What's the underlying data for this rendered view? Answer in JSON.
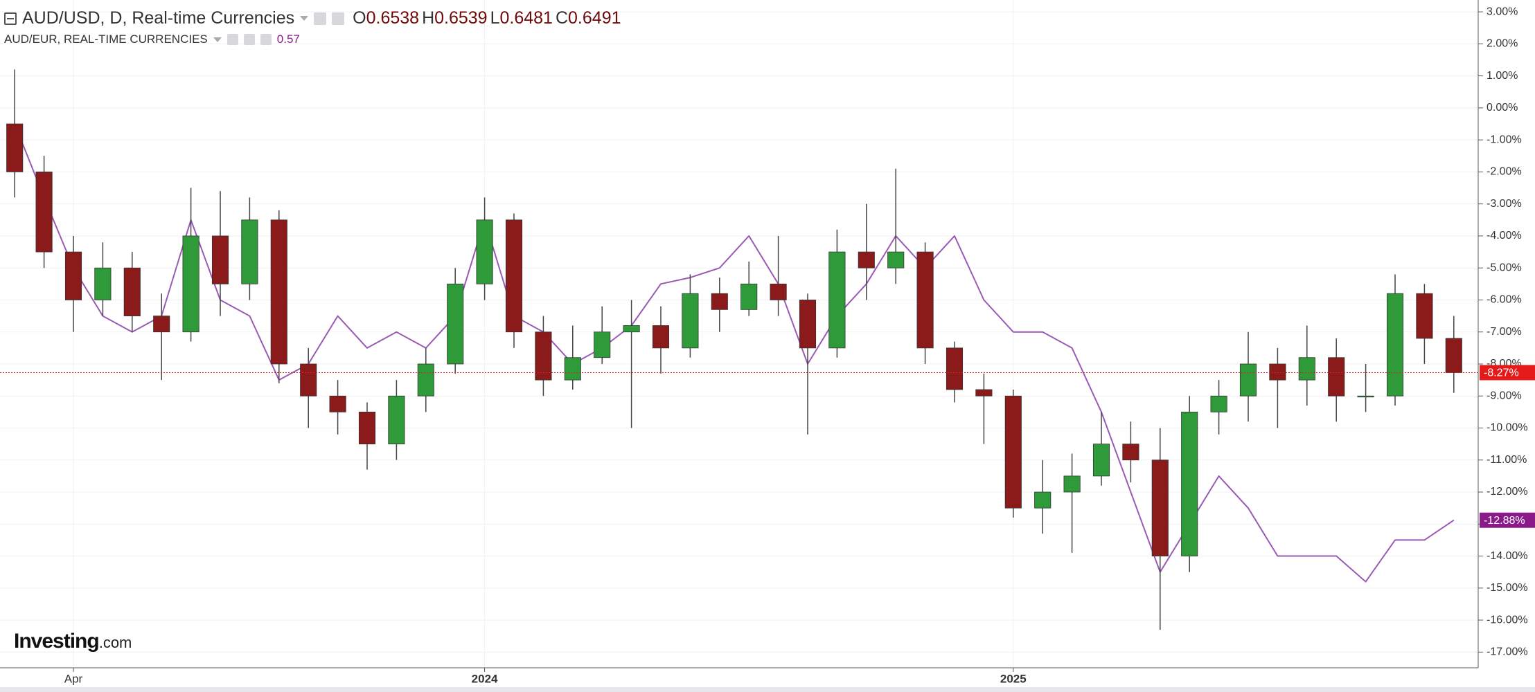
{
  "chart_data": {
    "type": "candlestick",
    "title": "AUD/USD, D, Real-time Currencies",
    "ohlc": {
      "labels": [
        "O",
        "H",
        "L",
        "C"
      ],
      "values": [
        0.6538,
        0.6539,
        0.6481,
        0.6491
      ]
    },
    "categories": [
      null,
      null,
      "Apr",
      null,
      null,
      null,
      null,
      null,
      null,
      null,
      null,
      null,
      null,
      null,
      null,
      null,
      "2024",
      null,
      null,
      null,
      null,
      null,
      null,
      null,
      null,
      null,
      null,
      null,
      null,
      null,
      null,
      null,
      null,
      null,
      "2025",
      null,
      null,
      null,
      null,
      null,
      null,
      null,
      null,
      null,
      null,
      null,
      null,
      null,
      null,
      null
    ],
    "open": [
      -0.5,
      -2,
      -4.5,
      -6,
      -5,
      -6.5,
      -7,
      -4,
      -5.5,
      -3.5,
      -8,
      -9,
      -9.5,
      -10.5,
      -9,
      -8,
      -5.5,
      -3.5,
      -7,
      -8.5,
      -7.8,
      -7,
      -6.8,
      -7.5,
      -5.8,
      -6.3,
      -5.5,
      -6,
      -7.5,
      -4.5,
      -5,
      -4.5,
      -7.5,
      -8.8,
      -9,
      -12.5,
      -12,
      -11.5,
      -10.5,
      -11,
      -14,
      -9.5,
      -9,
      -8,
      -8.5,
      -7.8,
      -9,
      -9,
      -5.8,
      -7.2
    ],
    "high": [
      1.2,
      -1.5,
      -4,
      -4.2,
      -4.5,
      -5.8,
      -2.5,
      -2.6,
      -2.8,
      -3.2,
      -7.5,
      -8.5,
      -9.2,
      -8.5,
      -7.5,
      -5,
      -2.8,
      -3.3,
      -6.5,
      -6.8,
      -6.2,
      -6,
      -6.2,
      -5.2,
      -5.3,
      -4.8,
      -4,
      -5.8,
      -3.8,
      -3,
      -1.9,
      -4.2,
      -7.3,
      -8.3,
      -8.8,
      -11,
      -10.8,
      -9.5,
      -9.8,
      -10,
      -9,
      -8.5,
      -7,
      -7.5,
      -6.8,
      -7.2,
      -8,
      -5.2,
      -5.5,
      -6.5
    ],
    "low": [
      -2.8,
      -5,
      -7,
      -6.5,
      -7,
      -8.5,
      -7.3,
      -6.5,
      -6,
      -8.6,
      -10,
      -10.2,
      -11.3,
      -11,
      -9.5,
      -8.3,
      -6,
      -7.5,
      -9,
      -8.8,
      -8,
      -10,
      -8.3,
      -7.8,
      -7,
      -6.5,
      -6.5,
      -10.2,
      -7.8,
      -6,
      -5.5,
      -8,
      -9.2,
      -10.5,
      -12.8,
      -13.3,
      -13.9,
      -11.8,
      -11.7,
      -16.3,
      -14.5,
      -10.2,
      -9.8,
      -10,
      -9.3,
      -9.8,
      -9.5,
      -9.3,
      -8,
      -8.9
    ],
    "close": [
      -2,
      -4.5,
      -6,
      -5,
      -6.5,
      -7,
      -4,
      -5.5,
      -3.5,
      -8,
      -9,
      -9.5,
      -10.5,
      -9,
      -8,
      -5.5,
      -3.5,
      -7,
      -8.5,
      -7.8,
      -7,
      -6.8,
      -7.5,
      -5.8,
      -6.3,
      -5.5,
      -6,
      -7.5,
      -4.5,
      -5,
      -4.5,
      -7.5,
      -8.8,
      -9,
      -12.5,
      -12,
      -11.5,
      -10.5,
      -11,
      -14,
      -9.5,
      -9,
      -8,
      -8.5,
      -7.8,
      -9,
      -9,
      -5.8,
      -7.2,
      -8.27
    ],
    "up_color": "#2e9a3a",
    "down_color": "#8b1a1a",
    "last_label": "-8.27%",
    "last_color": "#e31b1b",
    "overlay": {
      "name": "AUD/EUR, REAL-TIME CURRENCIES",
      "value": 0.57,
      "color": "#9b59b6",
      "tag_color": "#8a1a8a",
      "values": [
        -0.5,
        -2.8,
        -5,
        -6.5,
        -7,
        -6.5,
        -3.5,
        -6,
        -6.5,
        -8.5,
        -8,
        -6.5,
        -7.5,
        -7,
        -7.5,
        -6.5,
        -3.5,
        -6.5,
        -7,
        -8,
        -7.5,
        -6.8,
        -5.5,
        -5.3,
        -5,
        -4,
        -5.5,
        -8,
        -6.5,
        -5.5,
        -4,
        -5,
        -4,
        -6,
        -7,
        -7,
        -7.5,
        -9.5,
        -12,
        -14.5,
        -13,
        -11.5,
        -12.5,
        -14,
        -14,
        -14,
        -14.8,
        -13.5,
        -13.5,
        -12.88
      ],
      "last_label": "-12.88%"
    },
    "ylim": [
      -17.49,
      3.37
    ],
    "yticks": [
      {
        "value": 3,
        "label": "3.00%"
      },
      {
        "value": 2,
        "label": "2.00%"
      },
      {
        "value": 1,
        "label": "1.00%"
      },
      {
        "value": 0,
        "label": "0.00%"
      },
      {
        "value": -1,
        "label": "-1.00%"
      },
      {
        "value": -2,
        "label": "-2.00%"
      },
      {
        "value": -3,
        "label": "-3.00%"
      },
      {
        "value": -4,
        "label": "-4.00%"
      },
      {
        "value": -5,
        "label": "-5.00%"
      },
      {
        "value": -6,
        "label": "-6.00%"
      },
      {
        "value": -7,
        "label": "-7.00%"
      },
      {
        "value": -8,
        "label": "-8.00%"
      },
      {
        "value": -9,
        "label": "-9.00%"
      },
      {
        "value": -10,
        "label": "-10.00%"
      },
      {
        "value": -11,
        "label": "-11.00%"
      },
      {
        "value": -12,
        "label": "-12.00%"
      },
      {
        "value": -13,
        "label": "-13.00%"
      },
      {
        "value": -14,
        "label": "-14.00%"
      },
      {
        "value": -15,
        "label": "-15.00%"
      },
      {
        "value": -16,
        "label": "-16.00%"
      },
      {
        "value": -17,
        "label": "-17.00%"
      }
    ],
    "grid": true,
    "logo": {
      "brand": "Investing",
      "suffix": ".com"
    }
  }
}
